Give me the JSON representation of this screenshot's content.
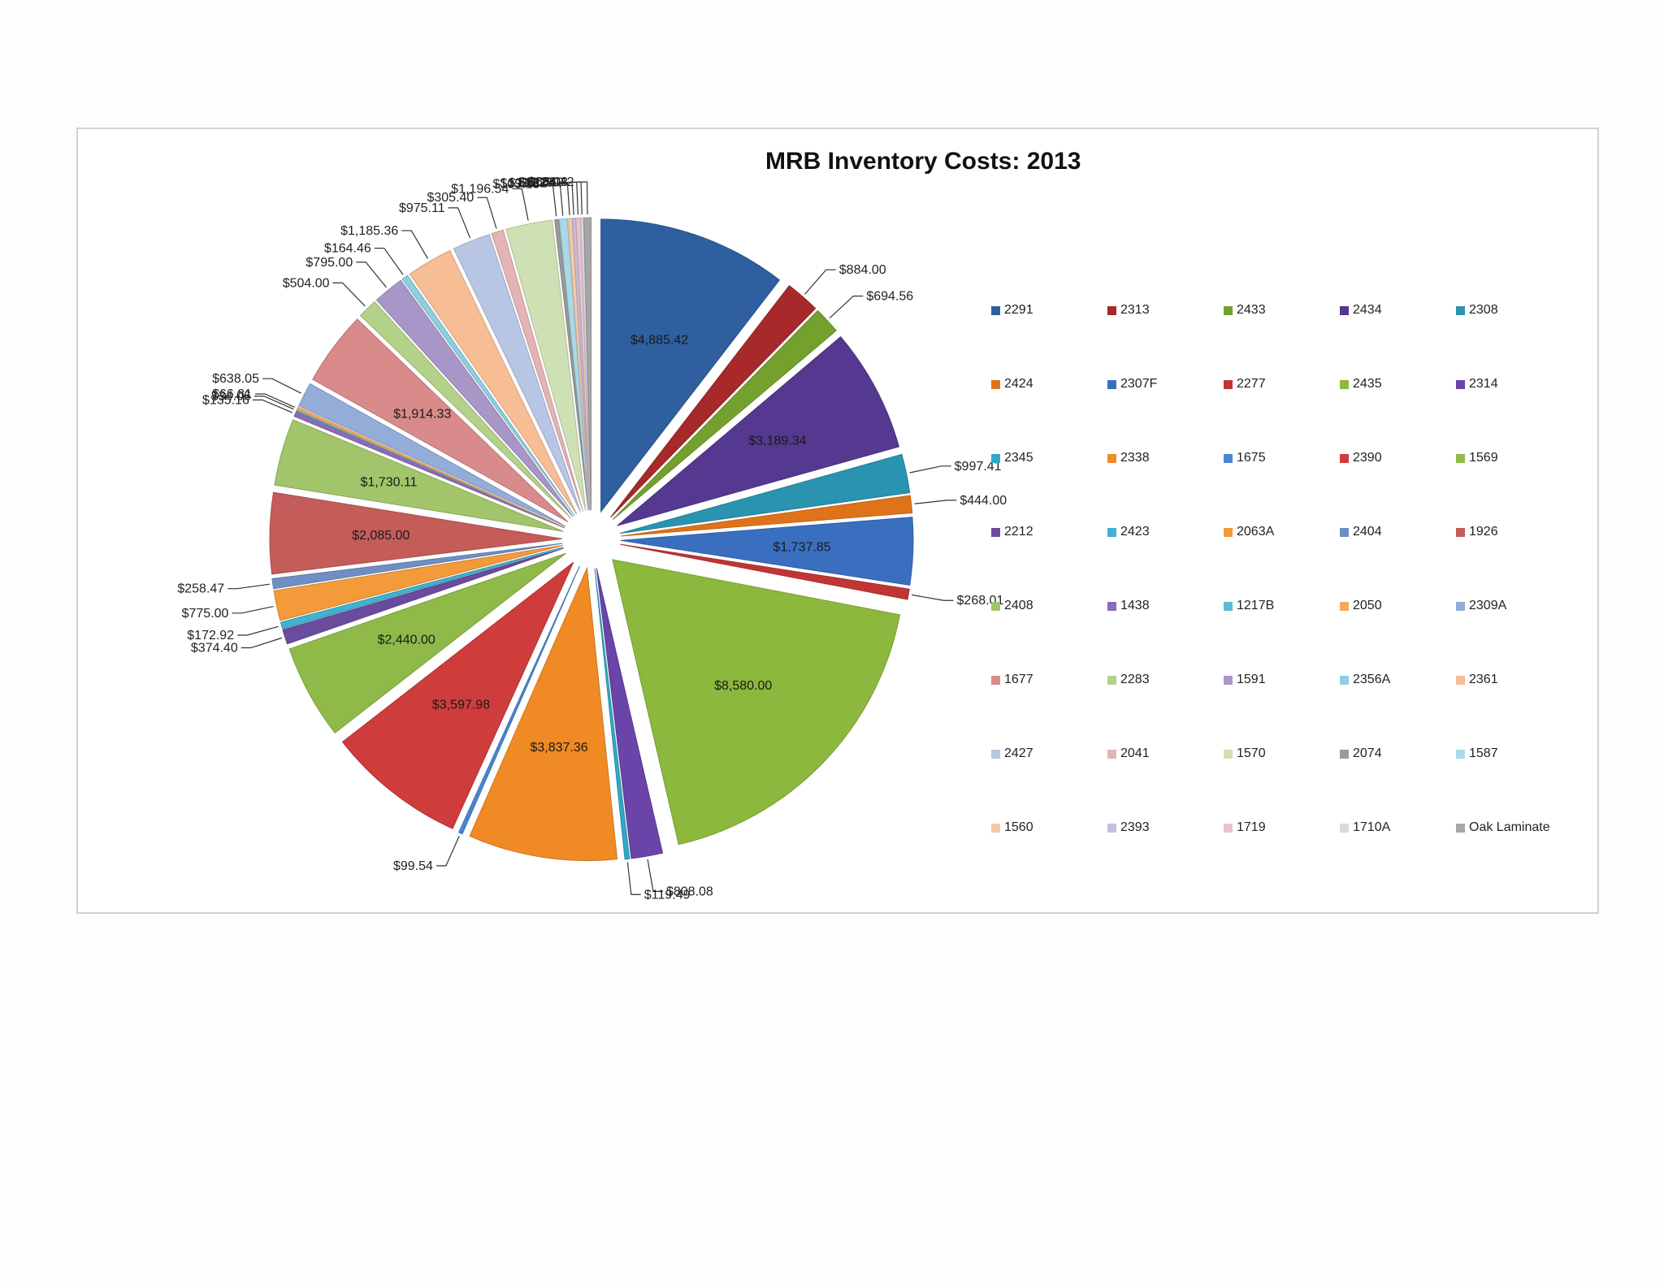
{
  "chart_data": {
    "type": "pie",
    "title": "MRB Inventory Costs: 2013",
    "legend_position": "right",
    "exploded": true,
    "slices": [
      {
        "name": "2291",
        "value": 4885.42,
        "label": "$4,885.42",
        "color": "#2f5f9f"
      },
      {
        "name": "2313",
        "value": 884.0,
        "label": "$884.00",
        "color": "#a8292a"
      },
      {
        "name": "2433",
        "value": 694.56,
        "label": "$694.56",
        "color": "#74a12e"
      },
      {
        "name": "2434",
        "value": 3189.34,
        "label": "$3,189.34",
        "color": "#55388f"
      },
      {
        "name": "2308",
        "value": 997.41,
        "label": "$997.41",
        "color": "#2a93b0"
      },
      {
        "name": "2424",
        "value": 444.0,
        "label": "$444.00",
        "color": "#e0731a"
      },
      {
        "name": "2307F",
        "value": 1737.85,
        "label": "$1,737.85",
        "color": "#3a6fc0"
      },
      {
        "name": "2277",
        "value": 268.01,
        "label": "$268.01",
        "color": "#c23535"
      },
      {
        "name": "2435",
        "value": 8580.0,
        "label": "$8,580.00",
        "color": "#8cb83e"
      },
      {
        "name": "2314",
        "value": 808.08,
        "label": "$808.08",
        "color": "#6a44a8"
      },
      {
        "name": "2345",
        "value": 119.49,
        "label": "$119.49",
        "color": "#31a8c6"
      },
      {
        "name": "2338",
        "value": 3837.36,
        "label": "$3,837.36",
        "color": "#f08a24"
      },
      {
        "name": "1675",
        "value": 99.54,
        "label": "$99.54",
        "color": "#4a86cf"
      },
      {
        "name": "2390",
        "value": 3597.98,
        "label": "$3,597.98",
        "color": "#cf3c3c"
      },
      {
        "name": "1569",
        "value": 2440.0,
        "label": "$2,440.00",
        "color": "#8fba4a"
      },
      {
        "name": "2212",
        "value": 374.4,
        "label": "$374.40",
        "color": "#6a4c9e"
      },
      {
        "name": "2423",
        "value": 172.92,
        "label": "$172.92",
        "color": "#3fb3cf"
      },
      {
        "name": "2063A",
        "value": 775.0,
        "label": "$775.00",
        "color": "#f39a3a"
      },
      {
        "name": "2404",
        "value": 258.47,
        "label": "$258.47",
        "color": "#6f8fc4"
      },
      {
        "name": "1926",
        "value": 2085.0,
        "label": "$2,085.00",
        "color": "#c45c5a"
      },
      {
        "name": "2408",
        "value": 1730.11,
        "label": "$1,730.11",
        "color": "#a2c46a"
      },
      {
        "name": "1438",
        "value": 135.16,
        "label": "$135.16",
        "color": "#8a6cb8"
      },
      {
        "name": "1217B",
        "value": 34.06,
        "label": "$34.06",
        "color": "#5dbcd4"
      },
      {
        "name": "2050",
        "value": 66.81,
        "label": "$66.81",
        "color": "#f5a95e"
      },
      {
        "name": "2309A",
        "value": 638.05,
        "label": "$638.05",
        "color": "#93acd8"
      },
      {
        "name": "1677",
        "value": 1914.33,
        "label": "$1,914.33",
        "color": "#d98a8a"
      },
      {
        "name": "2283",
        "value": 504.0,
        "label": "$504.00",
        "color": "#b4d18a"
      },
      {
        "name": "1591",
        "value": 795.0,
        "label": "$795.00",
        "color": "#a896c8"
      },
      {
        "name": "2356A",
        "value": 164.46,
        "label": "$164.46",
        "color": "#8ccfe0"
      },
      {
        "name": "2361",
        "value": 1185.36,
        "label": "$1,185.36",
        "color": "#f7bd94"
      },
      {
        "name": "2427",
        "value": 975.11,
        "label": "$975.11",
        "color": "#b8c6e3"
      },
      {
        "name": "2041",
        "value": 305.4,
        "label": "$305.40",
        "color": "#e4b4b4"
      },
      {
        "name": "1570",
        "value": 1196.54,
        "label": "$1,196.54",
        "color": "#cfe0b5"
      },
      {
        "name": "2074",
        "value": 103.18,
        "label": "$103.18",
        "color": "#9a9a9a"
      },
      {
        "name": "1587",
        "value": 199.31,
        "label": "$199.31",
        "color": "#a9d9e6"
      },
      {
        "name": "1560",
        "value": 110.27,
        "label": "$110.27",
        "color": "#f3c9a8"
      },
      {
        "name": "2393",
        "value": 81.5,
        "label": "$81.50",
        "color": "#c9bede"
      },
      {
        "name": "1719",
        "value": 112.5,
        "label": "$112.50",
        "color": "#e8c3c8"
      },
      {
        "name": "1710A",
        "value": 68.03,
        "label": "$68.03",
        "color": "#d9d9e6"
      },
      {
        "name": "Oak Laminate",
        "value": 184.42,
        "label": "$184.42",
        "color": "#a6a6a6"
      }
    ]
  }
}
